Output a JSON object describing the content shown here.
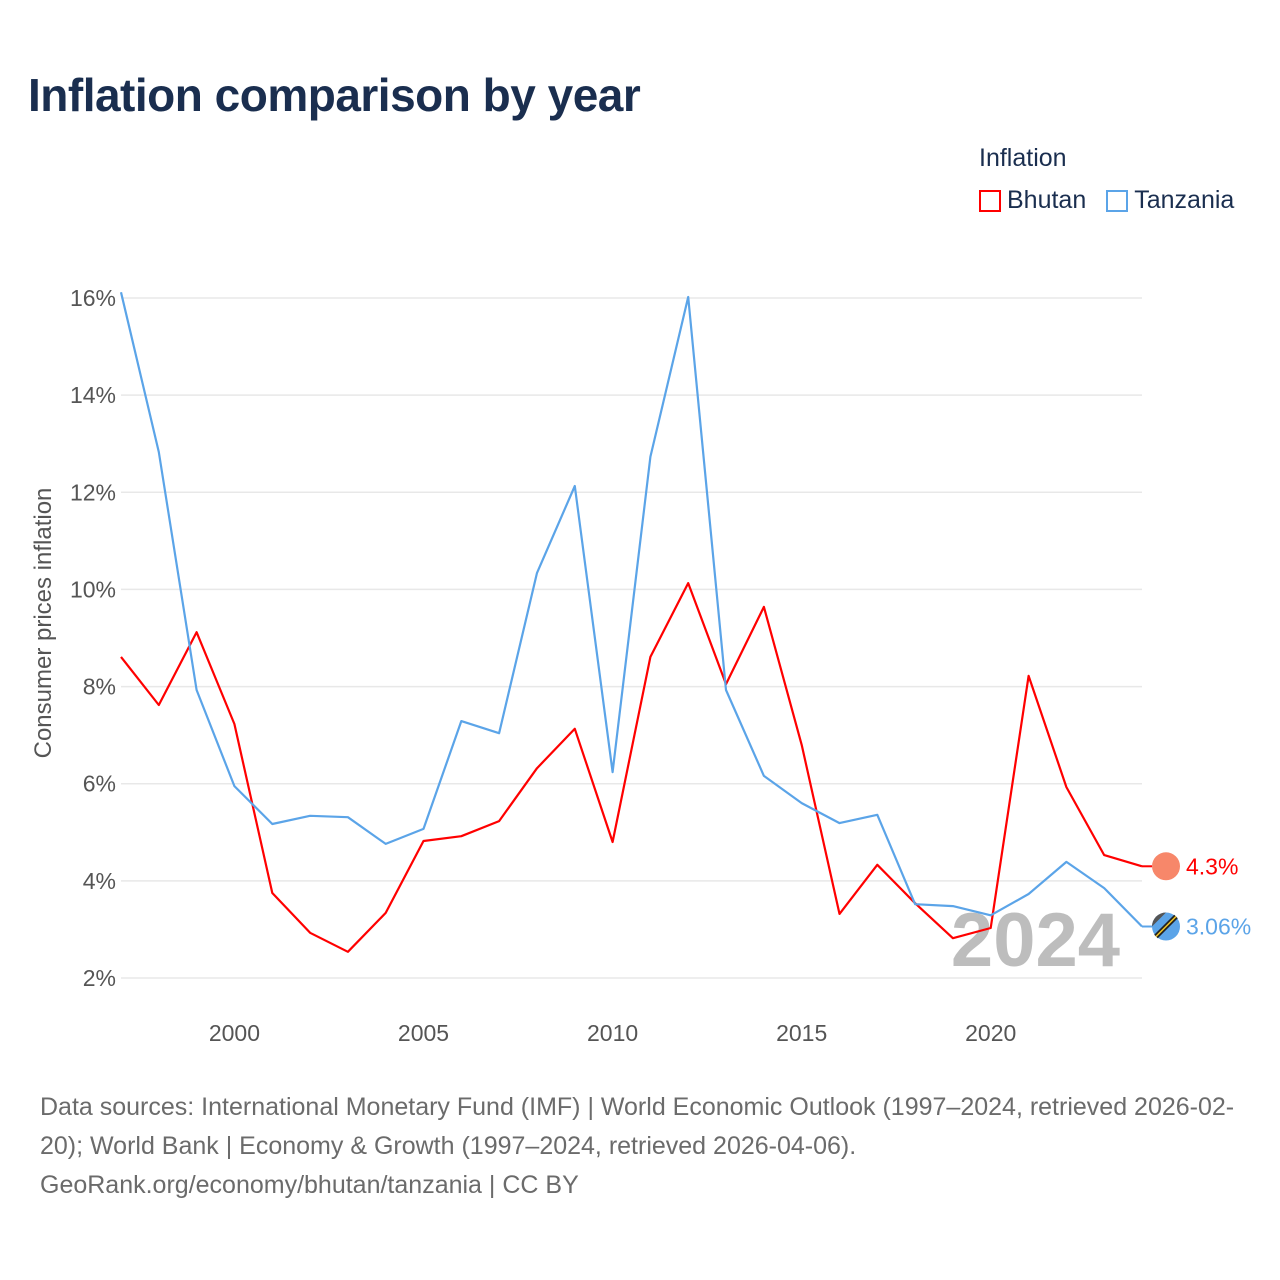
{
  "title": "Inflation comparison by year",
  "legend": {
    "title": "Inflation",
    "items": [
      {
        "label": "Bhutan",
        "color": "#ff0000"
      },
      {
        "label": "Tanzania",
        "color": "#5ba4e8"
      }
    ]
  },
  "footer": {
    "sources": "Data sources: International Monetary Fund (IMF) | World Economic Outlook (1997–2024, retrieved 2026-02-20); World Bank | Economy & Growth (1997–2024, retrieved 2026-04-06).",
    "credit": "GeoRank.org/economy/bhutan/tanzania | CC BY"
  },
  "chart_data": {
    "type": "line",
    "title": "Inflation comparison by year",
    "xlabel": "",
    "ylabel": "Consumer prices inflation",
    "xlim": [
      1997,
      2024
    ],
    "ylim": [
      2,
      16
    ],
    "xticks": [
      2000,
      2005,
      2010,
      2015,
      2020
    ],
    "xtick_labels": [
      "2000",
      "2005",
      "2010",
      "2015",
      "2020"
    ],
    "yticks": [
      2,
      4,
      6,
      8,
      10,
      12,
      14,
      16
    ],
    "ytick_labels": [
      "2%",
      "4%",
      "6%",
      "8%",
      "10%",
      "12%",
      "14%",
      "16%"
    ],
    "grid": true,
    "legend_position": "top-right",
    "annotation": "2024",
    "x": [
      1997,
      1998,
      1999,
      2000,
      2001,
      2002,
      2003,
      2004,
      2005,
      2006,
      2007,
      2008,
      2009,
      2010,
      2011,
      2012,
      2013,
      2014,
      2015,
      2016,
      2017,
      2018,
      2019,
      2020,
      2021,
      2022,
      2023,
      2024
    ],
    "series": [
      {
        "name": "Bhutan",
        "color": "#ff0000",
        "end_label": "4.3%",
        "values": [
          8.61,
          7.62,
          9.12,
          7.23,
          3.75,
          2.93,
          2.54,
          3.34,
          4.82,
          4.92,
          5.23,
          6.32,
          7.13,
          4.8,
          8.61,
          10.13,
          8.05,
          9.64,
          6.8,
          3.32,
          4.33,
          3.54,
          2.82,
          3.03,
          8.22,
          5.93,
          4.53,
          4.3
        ]
      },
      {
        "name": "Tanzania",
        "color": "#5ba4e8",
        "end_label": "3.06%",
        "values": [
          16.12,
          12.83,
          7.93,
          5.95,
          5.17,
          5.34,
          5.31,
          4.76,
          5.07,
          7.29,
          7.04,
          10.34,
          12.13,
          6.24,
          12.73,
          16.02,
          7.93,
          6.16,
          5.6,
          5.19,
          5.36,
          3.52,
          3.48,
          3.29,
          3.73,
          4.39,
          3.85,
          3.06
        ]
      }
    ]
  }
}
